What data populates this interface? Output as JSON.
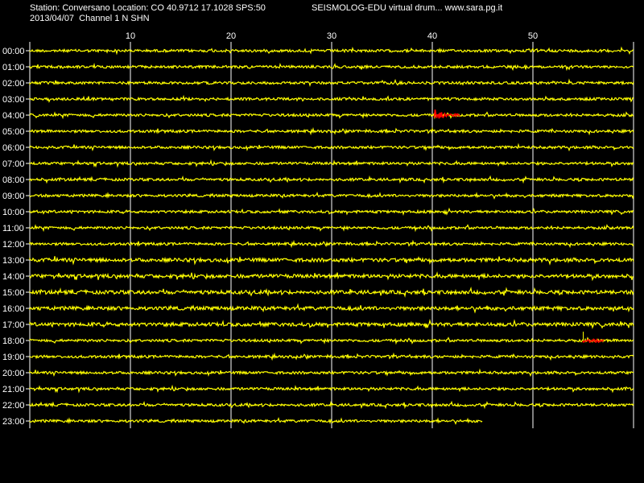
{
  "header": {
    "station_line": "Station: Conversano Location: CO 40.9712 17.1028 SPS:50",
    "date_line": "2013/04/07  Channel 1 N SHN",
    "brand_line": "SEISMOLOG-EDU virtual drum... www.sara.pg.it"
  },
  "chart_data": {
    "type": "line",
    "title": "",
    "x_ticks": [
      "10",
      "20",
      "30",
      "40",
      "50"
    ],
    "x_range": [
      0,
      60
    ],
    "y_labels": [
      "00:00",
      "01:00",
      "02:00",
      "03:00",
      "04:00",
      "05:00",
      "06:00",
      "07:00",
      "08:00",
      "09:00",
      "10:00",
      "11:00",
      "12:00",
      "13:00",
      "14:00",
      "15:00",
      "16:00",
      "17:00",
      "18:00",
      "19:00",
      "20:00",
      "21:00",
      "22:00",
      "23:00"
    ],
    "grid": true,
    "trace_color": "#ffff00",
    "event_color": "#ff0000",
    "last_row_end_minute": 45,
    "events": [
      {
        "row": "04:00",
        "start_minute": 40.2,
        "end_minute": 42.8
      },
      {
        "row": "18:00",
        "start_minute": 55.0,
        "end_minute": 57.0
      }
    ]
  }
}
